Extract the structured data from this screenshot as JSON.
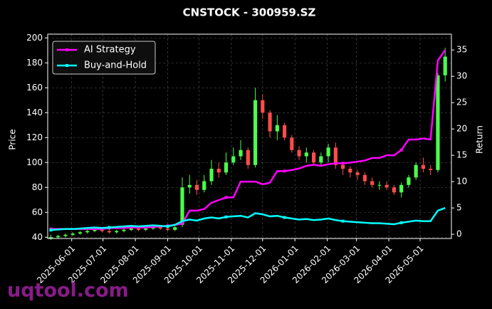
{
  "chart_data": {
    "type": "candlestick",
    "title": "CNSTOCK - 300959.SZ",
    "ylabel": "Price",
    "y2label": "Return",
    "x": [
      "2025-05-12",
      "2025-05-19",
      "2025-05-26",
      "2025-06-02",
      "2025-06-09",
      "2025-06-16",
      "2025-06-23",
      "2025-06-30",
      "2025-07-07",
      "2025-07-14",
      "2025-07-21",
      "2025-07-28",
      "2025-08-04",
      "2025-08-11",
      "2025-08-18",
      "2025-08-25",
      "2025-09-01",
      "2025-09-08",
      "2025-09-15",
      "2025-09-22",
      "2025-09-29",
      "2025-10-06",
      "2025-10-13",
      "2025-10-20",
      "2025-10-27",
      "2025-11-03",
      "2025-11-10",
      "2025-11-17",
      "2025-11-24",
      "2025-12-01",
      "2025-12-08",
      "2025-12-15",
      "2025-12-22",
      "2025-12-29",
      "2026-01-05",
      "2026-01-12",
      "2026-01-19",
      "2026-01-26",
      "2026-02-02",
      "2026-02-09",
      "2026-02-16",
      "2026-02-23",
      "2026-03-02",
      "2026-03-09",
      "2026-03-16",
      "2026-03-23",
      "2026-03-30",
      "2026-04-06",
      "2026-04-13",
      "2026-04-20",
      "2026-04-27",
      "2026-05-04",
      "2026-05-11",
      "2026-05-18",
      "2026-05-25"
    ],
    "open": [
      39,
      40,
      41,
      42,
      43,
      44,
      45,
      46,
      45,
      44,
      45,
      46,
      47,
      46,
      47,
      48,
      47,
      46,
      50,
      80,
      82,
      78,
      85,
      95,
      92,
      100,
      105,
      110,
      98,
      150,
      140,
      125,
      130,
      120,
      110,
      105,
      108,
      100,
      105,
      112,
      98,
      95,
      92,
      90,
      85,
      82,
      82,
      80,
      76,
      82,
      88,
      98,
      95,
      94,
      170
    ],
    "high": [
      42,
      42,
      43,
      44,
      45,
      46,
      47,
      48,
      47,
      46,
      47,
      48,
      48,
      48,
      49,
      49,
      48,
      49,
      88,
      90,
      86,
      90,
      102,
      100,
      108,
      112,
      118,
      112,
      160,
      155,
      142,
      138,
      132,
      122,
      113,
      112,
      110,
      108,
      115,
      116,
      100,
      97,
      94,
      92,
      88,
      85,
      85,
      82,
      84,
      90,
      100,
      104,
      98,
      172,
      192
    ],
    "low": [
      38,
      39,
      40,
      41,
      42,
      43,
      44,
      44,
      43,
      43,
      44,
      45,
      45,
      45,
      46,
      46,
      45,
      45,
      48,
      75,
      74,
      76,
      82,
      88,
      90,
      98,
      102,
      95,
      96,
      135,
      120,
      118,
      118,
      108,
      102,
      100,
      98,
      98,
      100,
      95,
      90,
      88,
      86,
      82,
      80,
      78,
      78,
      74,
      72,
      80,
      86,
      92,
      90,
      92,
      165
    ],
    "close": [
      40,
      41,
      42,
      43,
      44,
      45,
      46,
      45,
      44,
      45,
      46,
      47,
      46,
      47,
      48,
      47,
      46,
      48,
      80,
      82,
      78,
      85,
      95,
      92,
      100,
      105,
      110,
      98,
      150,
      140,
      125,
      130,
      120,
      110,
      105,
      108,
      100,
      105,
      112,
      98,
      95,
      92,
      90,
      85,
      82,
      82,
      80,
      76,
      82,
      88,
      98,
      95,
      94,
      170,
      185
    ],
    "up_color": "#4cff4c",
    "down_color": "#ff4c4c",
    "series": [
      {
        "name": "AI Strategy",
        "color": "#ff00ff",
        "axis": "y2",
        "values": [
          1,
          1,
          1,
          1,
          1,
          1,
          1,
          1,
          1.2,
          1.2,
          1.2,
          1.3,
          1.3,
          1.3,
          1.4,
          1.5,
          1.6,
          1.8,
          2,
          4.5,
          4.5,
          4.8,
          6,
          6.5,
          7,
          7,
          10,
          10,
          10,
          9.5,
          9.8,
          12,
          12,
          12.2,
          12.5,
          13,
          13.2,
          13,
          13.3,
          13.5,
          13.5,
          13.6,
          13.8,
          14,
          14.5,
          14.5,
          15,
          15,
          16,
          18,
          18,
          18.2,
          18,
          33,
          35
        ]
      },
      {
        "name": "Buy-and-Hold",
        "color": "#00ffff",
        "axis": "y2",
        "values": [
          0.8,
          0.9,
          1,
          1,
          1.1,
          1.2,
          1.3,
          1.2,
          1.3,
          1.4,
          1.5,
          1.6,
          1.5,
          1.6,
          1.7,
          1.6,
          1.5,
          1.8,
          2.5,
          2.8,
          2.6,
          3,
          3.2,
          3,
          3.3,
          3.4,
          3.5,
          3.2,
          4,
          3.8,
          3.4,
          3.5,
          3.2,
          3,
          2.8,
          2.9,
          2.7,
          2.8,
          3,
          2.7,
          2.5,
          2.4,
          2.3,
          2.2,
          2.1,
          2.1,
          2,
          1.9,
          2.2,
          2.4,
          2.6,
          2.5,
          2.5,
          4.5,
          5
        ]
      }
    ],
    "xlim": [
      "2025-05-09",
      "2026-05-31"
    ],
    "xticks": [
      "2025-06-01",
      "2025-07-01",
      "2025-08-01",
      "2025-09-01",
      "2025-10-01",
      "2025-11-01",
      "2025-12-01",
      "2026-01-01",
      "2026-02-01",
      "2026-03-01",
      "2026-04-01",
      "2026-05-01"
    ],
    "ylim": [
      39,
      203
    ],
    "yticks": [
      40,
      60,
      80,
      100,
      120,
      140,
      160,
      180,
      200
    ],
    "y2lim": [
      -0.8,
      38
    ],
    "y2ticks": [
      0,
      5,
      10,
      15,
      20,
      25,
      30,
      35
    ],
    "grid": true,
    "legend": "upper left"
  },
  "watermark": "uqtool.com"
}
